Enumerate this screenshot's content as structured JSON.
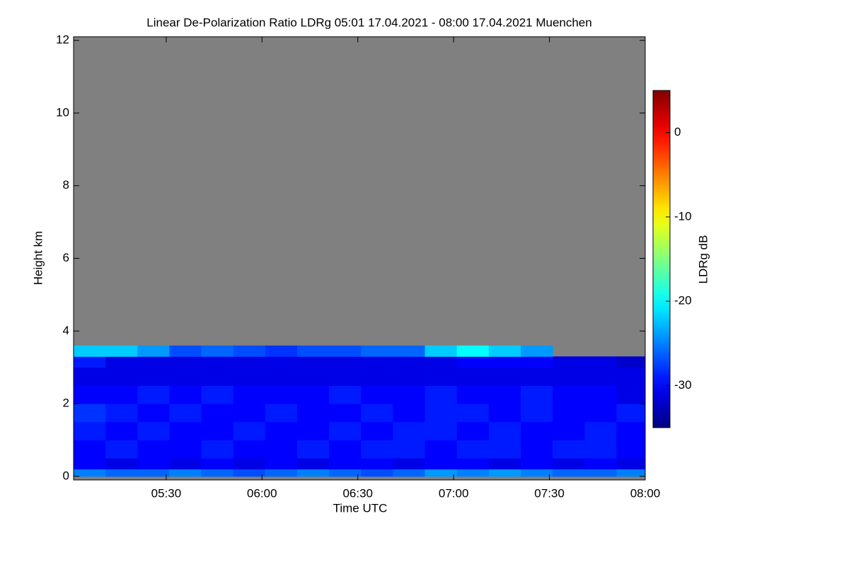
{
  "chart_data": {
    "type": "heatmap",
    "title": "Linear De-Polarization Ratio LDRg   05:01 17.04.2021 - 08:00 17.04.2021 Muenchen",
    "x_label": "Time UTC",
    "y_label": "Height km",
    "colorbar_label": "LDRg dB",
    "xlim": [
      301,
      480
    ],
    "ylim": [
      -0.1,
      12.1
    ],
    "xticks": [
      {
        "value": 330,
        "label": "05:30"
      },
      {
        "value": 360,
        "label": "06:00"
      },
      {
        "value": 390,
        "label": "06:30"
      },
      {
        "value": 420,
        "label": "07:00"
      },
      {
        "value": 450,
        "label": "07:30"
      },
      {
        "value": 480,
        "label": "08:00"
      }
    ],
    "yticks": [
      0,
      2,
      4,
      6,
      8,
      10,
      12
    ],
    "xbins": [
      301,
      311,
      321,
      331,
      341,
      351,
      361,
      371,
      381,
      391,
      401,
      411,
      421,
      431,
      441,
      451,
      461,
      471,
      480
    ],
    "ybins": [
      0,
      0.2,
      0.5,
      1,
      1.5,
      2,
      2.5,
      3,
      3.3,
      3.6
    ],
    "values": [
      [
        -25,
        -26,
        -26,
        -25,
        -26,
        -27,
        -26,
        -25,
        -26,
        -27,
        -26,
        -24,
        -25,
        -24,
        -25,
        -26,
        -26,
        -25
      ],
      [
        -30,
        -31,
        -30,
        -31,
        -30,
        -31,
        -30,
        -31,
        -30,
        -30,
        -31,
        -30,
        -30,
        -31,
        -30,
        -31,
        -30,
        -31
      ],
      [
        -30,
        -29,
        -30,
        -30,
        -29,
        -30,
        -30,
        -29,
        -30,
        -29,
        -29,
        -30,
        -29,
        -29,
        -30,
        -29,
        -29,
        -30
      ],
      [
        -29,
        -30,
        -29,
        -30,
        -30,
        -29,
        -30,
        -30,
        -29,
        -30,
        -29,
        -29,
        -30,
        -29,
        -30,
        -30,
        -29,
        -30
      ],
      [
        -28,
        -29,
        -30,
        -29,
        -30,
        -30,
        -29,
        -30,
        -30,
        -29,
        -30,
        -29,
        -29,
        -30,
        -29,
        -30,
        -30,
        -29
      ],
      [
        -30,
        -30,
        -29,
        -30,
        -29,
        -30,
        -30,
        -30,
        -29,
        -30,
        -30,
        -29,
        -30,
        -30,
        -29,
        -30,
        -30,
        -31
      ],
      [
        -31,
        -31,
        -31,
        -31,
        -31,
        -31,
        -31,
        -31,
        -31,
        -31,
        -31,
        -31,
        -31,
        -31,
        -31,
        -31,
        -31,
        -31
      ],
      [
        -29,
        -31,
        -31,
        -31,
        -31,
        -31,
        -31,
        -31,
        -31,
        -31,
        -31,
        -31,
        -30,
        -30,
        -30,
        -31,
        -31,
        -32
      ],
      [
        -22,
        -22,
        -24,
        -27,
        -26,
        -27,
        -28,
        -27,
        -27,
        -26,
        -26,
        -22,
        -20,
        -22,
        -24,
        null,
        null,
        null
      ]
    ],
    "clim": [
      -35,
      5
    ],
    "colormap": "jet",
    "colorbar_ticks": [
      0,
      -10,
      -20,
      -30
    ],
    "background_color": "#808080"
  }
}
